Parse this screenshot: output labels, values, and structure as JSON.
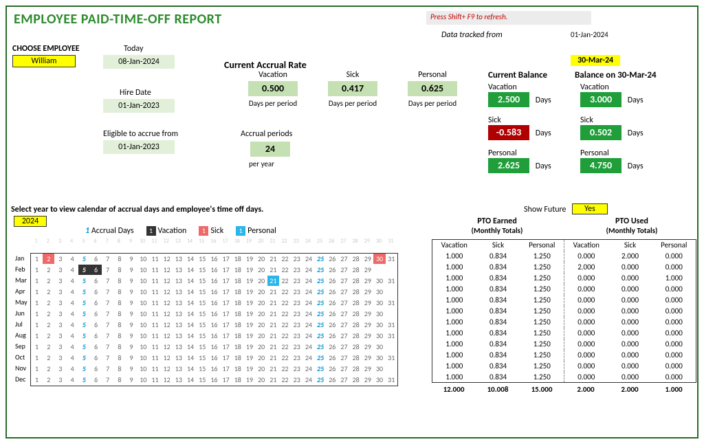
{
  "title": "EMPLOYEE PAID-TIME-OFF REPORT",
  "notes": {
    "refresh": "Press Shift+ F9 to refresh.",
    "tracked_from_label": "Data tracked from",
    "tracked_from_date": "01-Jan-2024"
  },
  "choose_employee": {
    "label": "CHOOSE EMPLOYEE",
    "value": "William"
  },
  "today": {
    "label": "Today",
    "value": "08-Jan-2024"
  },
  "hire": {
    "label": "Hire Date",
    "value": "01-Jan-2023"
  },
  "eligible": {
    "label": "Eligible to accrue from",
    "value": "01-Jan-2023"
  },
  "accrual_rate": {
    "title": "Current Accrual Rate",
    "vacation": {
      "label": "Vacation",
      "value": "0.500",
      "unit": "Days per period"
    },
    "sick": {
      "label": "Sick",
      "value": "0.417",
      "unit": "Days per period"
    },
    "personal": {
      "label": "Personal",
      "value": "0.625",
      "unit": "Days per period"
    },
    "periods": {
      "label": "Accrual periods",
      "value": "24",
      "unit": "per year"
    }
  },
  "balance_date": "30-Mar-24",
  "current_balance": {
    "title": "Current Balance",
    "vacation": {
      "label": "Vacation",
      "value": "2.500",
      "unit": "Days",
      "color": "#1f9e3a"
    },
    "sick": {
      "label": "Sick",
      "value": "-0.583",
      "unit": "Days",
      "color": "#b10000"
    },
    "personal": {
      "label": "Personal",
      "value": "2.625",
      "unit": "Days",
      "color": "#1f9e3a"
    }
  },
  "future_balance": {
    "title": "Balance on 30-Mar-24",
    "vacation": {
      "label": "Vacation",
      "value": "3.000",
      "unit": "Days",
      "color": "#1f9e3a"
    },
    "sick": {
      "label": "Sick",
      "value": "0.502",
      "unit": "Days",
      "color": "#1f9e3a"
    },
    "personal": {
      "label": "Personal",
      "value": "4.750",
      "unit": "Days",
      "color": "#1f9e3a"
    }
  },
  "select_year": {
    "label": "Select year to view calendar of accrual days and employee's time off days.",
    "value": "2024"
  },
  "show_future": {
    "label": "Show Future",
    "value": "Yes"
  },
  "legend": {
    "accrual": "Accrual Days",
    "vacation": "Vacation",
    "sick": "Sick",
    "personal": "Personal"
  },
  "pto_headers": {
    "earned": "PTO Earned",
    "used": "PTO Used",
    "sub": "(Monthly Totals)",
    "cols": [
      "Vacation",
      "Sick",
      "Personal",
      "Vacation",
      "Sick",
      "Personal"
    ]
  },
  "calendar": {
    "months": [
      "Jan",
      "Feb",
      "Mar",
      "Apr",
      "May",
      "Jun",
      "Jul",
      "Aug",
      "Sep",
      "Oct",
      "Nov",
      "Dec"
    ],
    "days_in_month": [
      31,
      29,
      31,
      30,
      31,
      30,
      31,
      31,
      30,
      31,
      30,
      31
    ],
    "accrual_days": [
      5,
      25
    ],
    "marks": {
      "Jan": {
        "2": "sick",
        "30": "sick"
      },
      "Feb": {
        "5": "vacation",
        "6": "vacation"
      },
      "Mar": {
        "21": "personal"
      }
    }
  },
  "pto_rows": [
    [
      "1.000",
      "0.834",
      "1.250",
      "0.000",
      "2.000",
      "0.000"
    ],
    [
      "1.000",
      "0.834",
      "1.250",
      "2.000",
      "0.000",
      "0.000"
    ],
    [
      "1.000",
      "0.834",
      "1.250",
      "0.000",
      "0.000",
      "1.000"
    ],
    [
      "1.000",
      "0.834",
      "1.250",
      "0.000",
      "0.000",
      "0.000"
    ],
    [
      "1.000",
      "0.834",
      "1.250",
      "0.000",
      "0.000",
      "0.000"
    ],
    [
      "1.000",
      "0.834",
      "1.250",
      "0.000",
      "0.000",
      "0.000"
    ],
    [
      "1.000",
      "0.834",
      "1.250",
      "0.000",
      "0.000",
      "0.000"
    ],
    [
      "1.000",
      "0.834",
      "1.250",
      "0.000",
      "0.000",
      "0.000"
    ],
    [
      "1.000",
      "0.834",
      "1.250",
      "0.000",
      "0.000",
      "0.000"
    ],
    [
      "1.000",
      "0.834",
      "1.250",
      "0.000",
      "0.000",
      "0.000"
    ],
    [
      "1.000",
      "0.834",
      "1.250",
      "0.000",
      "0.000",
      "0.000"
    ],
    [
      "1.000",
      "0.834",
      "1.250",
      "0.000",
      "0.000",
      "0.000"
    ]
  ],
  "pto_totals": [
    "12.000",
    "10.008",
    "15.000",
    "2.000",
    "2.000",
    "1.000"
  ],
  "colors": {
    "title": "#2e8b2e",
    "border": "#276c27",
    "yellow": "#ffff00",
    "greenbox": "#c5e0b3",
    "greenbox_light": "#e2efd9",
    "chip_green": "#1f9e3a",
    "chip_red": "#b10000",
    "accrual_blue": "#0091d1",
    "vacation_bg": "#333333",
    "sick_bg": "#ef6969",
    "personal_bg": "#2bb6ea"
  }
}
